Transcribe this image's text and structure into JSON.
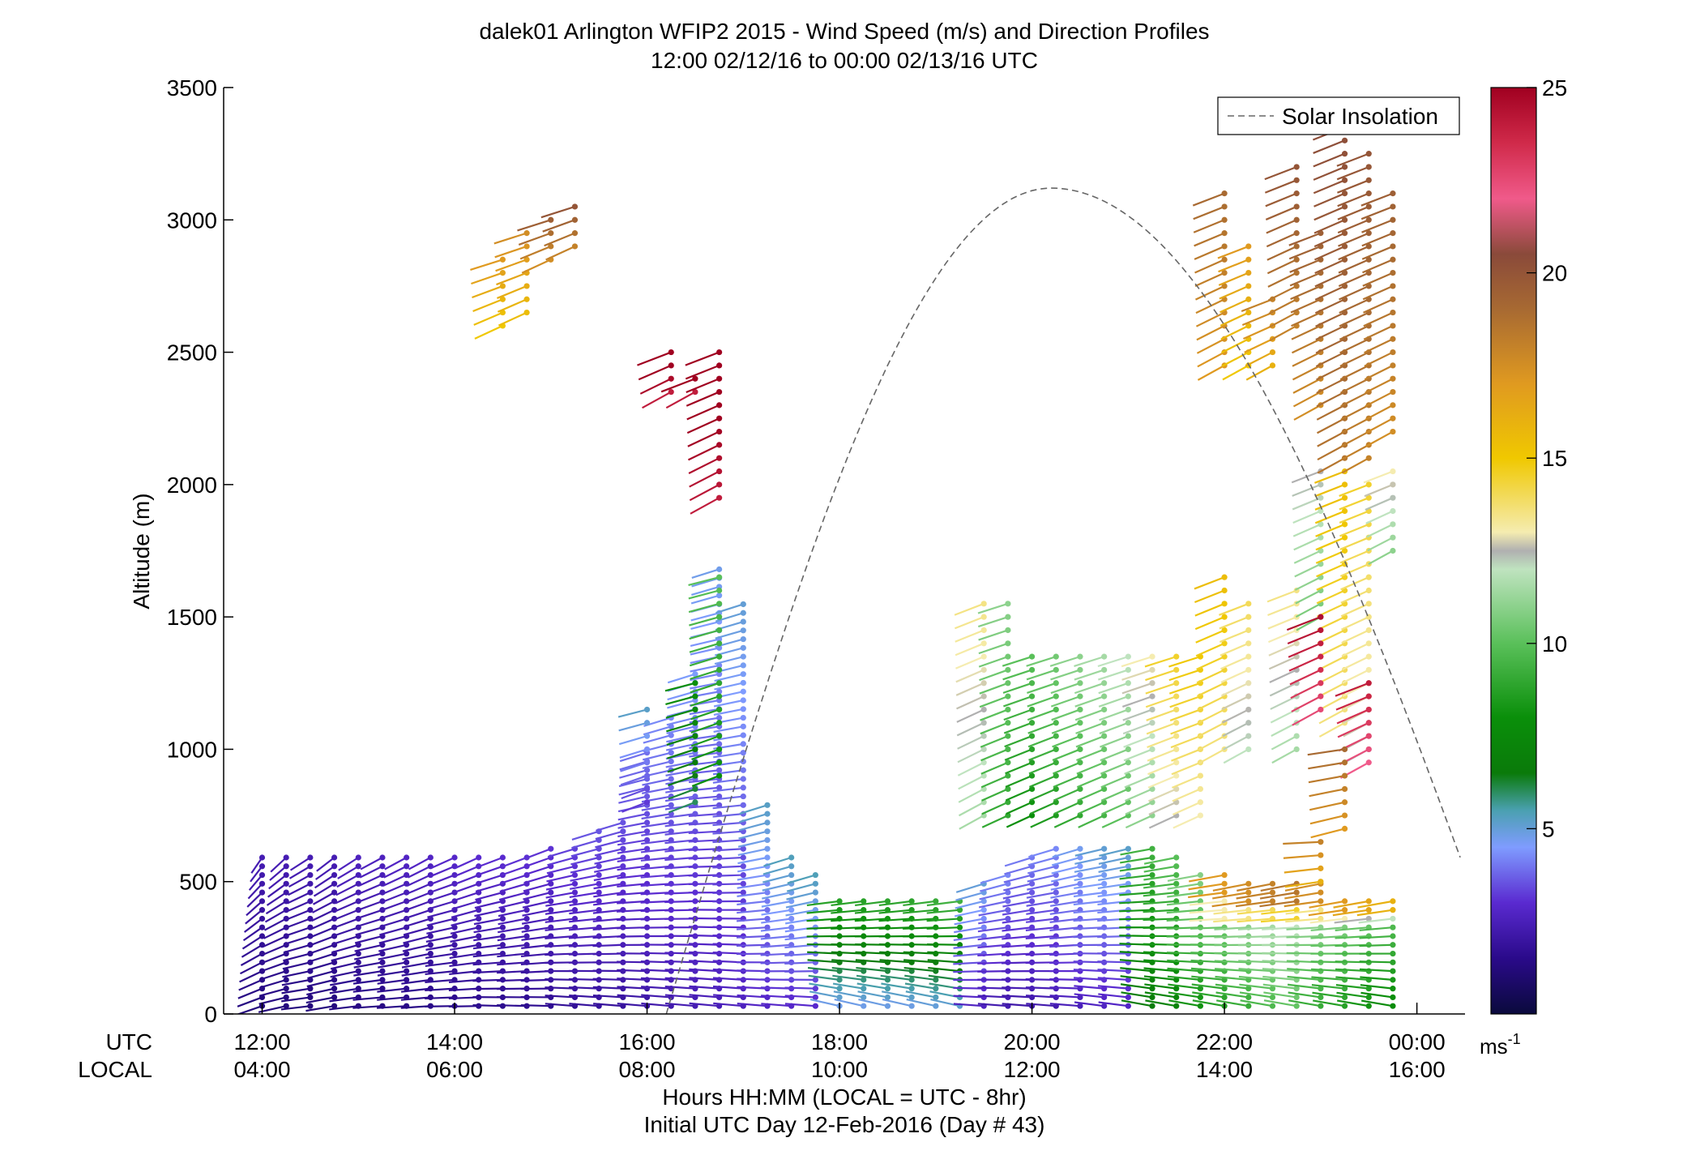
{
  "chart_data": {
    "type": "scatter",
    "title": "dalek01 Arlington WFIP2 2015 - Wind Speed (m/s) and Direction Profiles",
    "subtitle": "12:00 02/12/16 to 00:00 02/13/16  UTC",
    "ylabel": "Altitude (m)",
    "xlabel": "Hours HH:MM  (LOCAL = UTC - 8hr)",
    "xlabel2": "Initial UTC Day 12-Feb-2016 (Day # 43)",
    "xlim": [
      11.6,
      24.5
    ],
    "ylim": [
      0,
      3500
    ],
    "x_row_labels": [
      "UTC",
      "LOCAL"
    ],
    "x_ticks_utc": [
      "12:00",
      "14:00",
      "16:00",
      "18:00",
      "20:00",
      "22:00",
      "00:00"
    ],
    "x_ticks_local": [
      "04:00",
      "06:00",
      "08:00",
      "10:00",
      "12:00",
      "14:00",
      "16:00"
    ],
    "x_tick_hours": [
      12,
      14,
      16,
      18,
      20,
      22,
      24
    ],
    "y_ticks": [
      0,
      500,
      1000,
      1500,
      2000,
      2500,
      3000,
      3500
    ],
    "colorbar": {
      "range": [
        0,
        25
      ],
      "ticks": [
        5,
        10,
        15,
        20,
        25
      ],
      "unit": "ms",
      "unit_exp": "-1",
      "stops": [
        {
          "v": 0,
          "c": "#0a0a3c"
        },
        {
          "v": 1.5,
          "c": "#2a0a8a"
        },
        {
          "v": 3,
          "c": "#5a2ad0"
        },
        {
          "v": 4.5,
          "c": "#7f9cff"
        },
        {
          "v": 5.5,
          "c": "#4aa0b0"
        },
        {
          "v": 6.5,
          "c": "#0a7a0a"
        },
        {
          "v": 8,
          "c": "#0a8f0a"
        },
        {
          "v": 10,
          "c": "#5ac05a"
        },
        {
          "v": 12,
          "c": "#bfe3bf"
        },
        {
          "v": 12.5,
          "c": "#b0b0b0"
        },
        {
          "v": 13,
          "c": "#f5ecb0"
        },
        {
          "v": 15,
          "c": "#f0c800"
        },
        {
          "v": 17,
          "c": "#e09a20"
        },
        {
          "v": 19,
          "c": "#a86a32"
        },
        {
          "v": 20.5,
          "c": "#8a4a3a"
        },
        {
          "v": 22,
          "c": "#f05a8a"
        },
        {
          "v": 23.5,
          "c": "#d02a4a"
        },
        {
          "v": 25,
          "c": "#a00020"
        }
      ]
    },
    "legend": {
      "label": "Solar Insolation",
      "position": "top-right",
      "style": "dashed",
      "color": "#666666"
    },
    "solar_insolation": {
      "start_hour": 16.2,
      "peak_hour": 20.2,
      "end_hour": 24.5,
      "peak_altitude_equiv": 3120
    },
    "series": [
      {
        "t": 12.0,
        "ztop": 600,
        "dz": 33,
        "speed": 2.0,
        "dir": 200
      },
      {
        "t": 12.25,
        "ztop": 600,
        "dz": 33,
        "speed": 2.0,
        "dir": 210
      },
      {
        "t": 12.5,
        "ztop": 600,
        "dz": 33,
        "speed": 2.0,
        "dir": 220
      },
      {
        "t": 12.75,
        "ztop": 600,
        "dz": 33,
        "speed": 2.0,
        "dir": 215
      },
      {
        "t": 13.0,
        "ztop": 600,
        "dz": 33,
        "speed": 2.2,
        "dir": 220
      },
      {
        "t": 13.25,
        "ztop": 600,
        "dz": 33,
        "speed": 2.2,
        "dir": 225
      },
      {
        "t": 13.5,
        "ztop": 600,
        "dz": 33,
        "speed": 2.3,
        "dir": 225
      },
      {
        "t": 13.75,
        "ztop": 600,
        "dz": 33,
        "speed": 2.3,
        "dir": 225
      },
      {
        "t": 14.0,
        "ztop": 600,
        "dz": 33,
        "speed": 2.4,
        "dir": 230
      },
      {
        "t": 14.25,
        "ztop": 600,
        "dz": 33,
        "speed": 2.5,
        "dir": 230
      },
      {
        "t": 14.5,
        "ztop": 600,
        "dz": 33,
        "speed": 2.5,
        "dir": 235
      },
      {
        "t": 14.75,
        "ztop": 600,
        "dz": 33,
        "speed": 2.6,
        "dir": 235
      },
      {
        "t": 15.0,
        "ztop": 630,
        "dz": 33,
        "speed": 2.6,
        "dir": 235
      },
      {
        "t": 15.25,
        "ztop": 650,
        "dz": 33,
        "speed": 2.8,
        "dir": 240
      },
      {
        "t": 15.5,
        "ztop": 700,
        "dz": 33,
        "speed": 3.0,
        "dir": 240
      },
      {
        "t": 15.75,
        "ztop": 750,
        "dz": 33,
        "speed": 3.0,
        "dir": 240
      },
      {
        "t": 16.0,
        "ztop": 1000,
        "dz": 33,
        "speed": 3.3,
        "dir": 240
      },
      {
        "t": 16.25,
        "ztop": 1150,
        "dz": 33,
        "speed": 3.6,
        "dir": 240
      },
      {
        "t": 16.5,
        "ztop": 1300,
        "dz": 33,
        "speed": 3.8,
        "dir": 240
      },
      {
        "t": 16.75,
        "ztop": 1700,
        "dz": 33,
        "speed": 4.0,
        "dir": 240
      },
      {
        "t": 17.0,
        "ztop": 1550,
        "dz": 33,
        "speed": 4.2,
        "dir": 240
      },
      {
        "t": 17.25,
        "ztop": 800,
        "dz": 33,
        "speed": 4.4,
        "dir": 240
      },
      {
        "t": 17.5,
        "ztop": 600,
        "dz": 33,
        "speed": 4.5,
        "dir": 240
      },
      {
        "t": 17.75,
        "ztop": 550,
        "dz": 33,
        "speed": 4.6,
        "dir": 240
      },
      {
        "t": 18.0,
        "ztop": 450,
        "dz": 33,
        "speed": 7.5,
        "dir": 255
      },
      {
        "t": 18.25,
        "ztop": 450,
        "dz": 33,
        "speed": 7.5,
        "dir": 255
      },
      {
        "t": 18.5,
        "ztop": 450,
        "dz": 33,
        "speed": 7.6,
        "dir": 255
      },
      {
        "t": 18.75,
        "ztop": 450,
        "dz": 33,
        "speed": 7.6,
        "dir": 255
      },
      {
        "t": 19.0,
        "ztop": 450,
        "dz": 33,
        "speed": 7.8,
        "dir": 255
      },
      {
        "t": 19.25,
        "ztop": 450,
        "dz": 33,
        "speed": 8.0,
        "dir": 255
      },
      {
        "t": 19.5,
        "ztop": 500,
        "dz": 33,
        "speed": 4.2,
        "dir": 240
      },
      {
        "t": 19.75,
        "ztop": 550,
        "dz": 33,
        "speed": 3.6,
        "dir": 240
      },
      {
        "t": 20.0,
        "ztop": 600,
        "dz": 33,
        "speed": 3.4,
        "dir": 240
      },
      {
        "t": 20.25,
        "ztop": 650,
        "dz": 33,
        "speed": 3.6,
        "dir": 240
      },
      {
        "t": 20.5,
        "ztop": 650,
        "dz": 33,
        "speed": 4.0,
        "dir": 240
      },
      {
        "t": 20.75,
        "ztop": 650,
        "dz": 33,
        "speed": 4.3,
        "dir": 245
      },
      {
        "t": 21.0,
        "ztop": 650,
        "dz": 33,
        "speed": 4.4,
        "dir": 245
      },
      {
        "t": 21.25,
        "ztop": 650,
        "dz": 33,
        "speed": 8.5,
        "dir": 250
      },
      {
        "t": 21.5,
        "ztop": 600,
        "dz": 33,
        "speed": 9.0,
        "dir": 250
      },
      {
        "t": 21.75,
        "ztop": 550,
        "dz": 33,
        "speed": 10.0,
        "dir": 250
      },
      {
        "t": 22.0,
        "ztop": 550,
        "dz": 33,
        "speed": 10.5,
        "dir": 250
      },
      {
        "t": 22.25,
        "ztop": 500,
        "dz": 33,
        "speed": 11.0,
        "dir": 250
      },
      {
        "t": 22.5,
        "ztop": 500,
        "dz": 33,
        "speed": 11.5,
        "dir": 250
      },
      {
        "t": 22.75,
        "ztop": 500,
        "dz": 33,
        "speed": 12.0,
        "dir": 250
      },
      {
        "t": 23.0,
        "ztop": 500,
        "dz": 33,
        "speed": 11.0,
        "dir": 250
      },
      {
        "t": 23.25,
        "ztop": 450,
        "dz": 33,
        "speed": 10.5,
        "dir": 250
      },
      {
        "t": 23.5,
        "ztop": 450,
        "dz": 33,
        "speed": 10.0,
        "dir": 250
      },
      {
        "t": 23.75,
        "ztop": 450,
        "dz": 33,
        "speed": 9.5,
        "dir": 250
      }
    ],
    "upper_series": [
      {
        "t": 16.75,
        "zmin": 900,
        "ztop": 1650,
        "speed": 9.0,
        "dir": 240
      },
      {
        "t": 16.5,
        "zmin": 800,
        "ztop": 1250,
        "speed": 7.0,
        "dir": 240
      },
      {
        "t": 16.0,
        "zmin": 800,
        "ztop": 1150,
        "speed": 4.2,
        "dir": 240
      },
      {
        "t": 19.5,
        "zmin": 750,
        "ztop": 1550,
        "speed": 12.5,
        "dir": 230
      },
      {
        "t": 19.75,
        "zmin": 750,
        "ztop": 1550,
        "speed": 10.0,
        "dir": 235
      },
      {
        "t": 20.0,
        "zmin": 750,
        "ztop": 1350,
        "speed": 9.0,
        "dir": 235
      },
      {
        "t": 20.25,
        "zmin": 750,
        "ztop": 1350,
        "speed": 9.5,
        "dir": 235
      },
      {
        "t": 20.5,
        "zmin": 750,
        "ztop": 1350,
        "speed": 10.0,
        "dir": 235
      },
      {
        "t": 20.75,
        "zmin": 750,
        "ztop": 1350,
        "speed": 10.5,
        "dir": 235
      },
      {
        "t": 21.0,
        "zmin": 750,
        "ztop": 1350,
        "speed": 11.0,
        "dir": 235
      },
      {
        "t": 21.25,
        "zmin": 750,
        "ztop": 1350,
        "speed": 12.0,
        "dir": 235
      },
      {
        "t": 21.5,
        "zmin": 750,
        "ztop": 1350,
        "speed": 13.5,
        "dir": 235
      },
      {
        "t": 21.75,
        "zmin": 750,
        "ztop": 1350,
        "speed": 14.0,
        "dir": 235
      },
      {
        "t": 22.0,
        "zmin": 1000,
        "ztop": 1650,
        "speed": 14.5,
        "dir": 230
      },
      {
        "t": 22.25,
        "zmin": 1000,
        "ztop": 1550,
        "speed": 13.0,
        "dir": 230
      },
      {
        "t": 22.75,
        "zmin": 1000,
        "ztop": 1600,
        "speed": 12.5,
        "dir": 230
      },
      {
        "t": 23.0,
        "zmin": 1500,
        "ztop": 2050,
        "speed": 11.5,
        "dir": 230
      },
      {
        "t": 23.25,
        "zmin": 1100,
        "ztop": 2050,
        "speed": 14.5,
        "dir": 230
      },
      {
        "t": 23.5,
        "zmin": 1000,
        "ztop": 2000,
        "speed": 13.5,
        "dir": 230
      },
      {
        "t": 23.75,
        "zmin": 1750,
        "ztop": 2050,
        "speed": 12.0,
        "dir": 230
      },
      {
        "t": 23.0,
        "zmin": 1150,
        "ztop": 1500,
        "speed": 23.5,
        "dir": 230
      },
      {
        "t": 23.5,
        "zmin": 950,
        "ztop": 1250,
        "speed": 23.0,
        "dir": 230
      },
      {
        "t": 22.0,
        "zmin": 2450,
        "ztop": 3100,
        "speed": 18.0,
        "dir": 230
      },
      {
        "t": 22.25,
        "zmin": 2450,
        "ztop": 2900,
        "speed": 16.0,
        "dir": 230
      },
      {
        "t": 22.5,
        "zmin": 2450,
        "ztop": 2700,
        "speed": 17.0,
        "dir": 230
      },
      {
        "t": 22.75,
        "zmin": 2600,
        "ztop": 3200,
        "speed": 19.0,
        "dir": 230
      },
      {
        "t": 23.0,
        "zmin": 2300,
        "ztop": 2950,
        "speed": 18.5,
        "dir": 230
      },
      {
        "t": 23.25,
        "zmin": 2100,
        "ztop": 3450,
        "speed": 19.5,
        "dir": 230
      },
      {
        "t": 23.5,
        "zmin": 2100,
        "ztop": 3250,
        "speed": 19.0,
        "dir": 230
      },
      {
        "t": 23.75,
        "zmin": 2200,
        "ztop": 3100,
        "speed": 18.5,
        "dir": 230
      },
      {
        "t": 23.25,
        "zmin": 700,
        "ztop": 1000,
        "speed": 18.0,
        "dir": 250
      },
      {
        "t": 23.0,
        "zmin": 500,
        "ztop": 650,
        "speed": 17.0,
        "dir": 260
      },
      {
        "t": 14.5,
        "zmin": 2600,
        "ztop": 2850,
        "speed": 16.0,
        "dir": 235
      },
      {
        "t": 14.75,
        "zmin": 2650,
        "ztop": 2950,
        "speed": 16.5,
        "dir": 235
      },
      {
        "t": 15.0,
        "zmin": 2850,
        "ztop": 3000,
        "speed": 18.5,
        "dir": 235
      },
      {
        "t": 15.25,
        "zmin": 2900,
        "ztop": 3050,
        "speed": 19.0,
        "dir": 235
      },
      {
        "t": 16.25,
        "zmin": 2350,
        "ztop": 2500,
        "speed": 25.0,
        "dir": 230
      },
      {
        "t": 16.5,
        "zmin": 2350,
        "ztop": 2400,
        "speed": 25.0,
        "dir": 230
      },
      {
        "t": 16.75,
        "zmin": 1950,
        "ztop": 2500,
        "speed": 25.0,
        "dir": 230
      }
    ]
  }
}
